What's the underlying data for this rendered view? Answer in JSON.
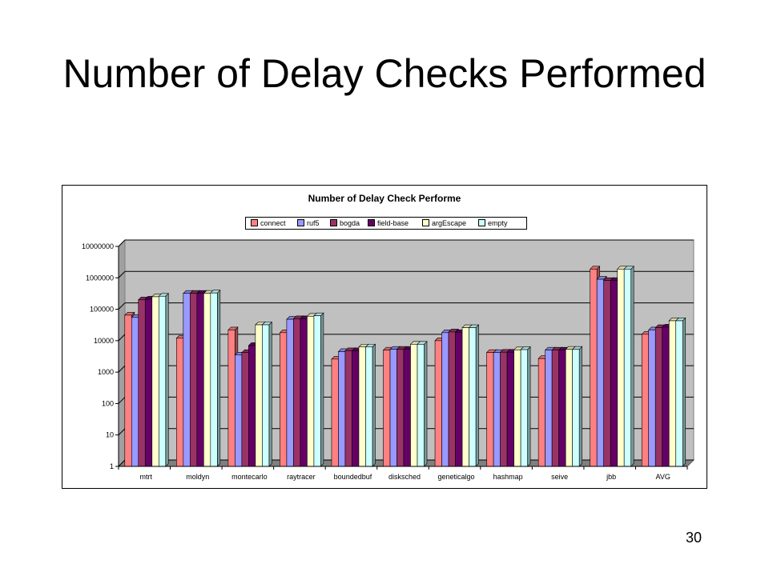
{
  "slide": {
    "title": "Number of Delay Checks Performed",
    "page_number": "30"
  },
  "chart_data": {
    "type": "bar",
    "title": "Number of Delay Check Performe",
    "y_scale": "log",
    "ylim": [
      1,
      10000000
    ],
    "y_ticks": [
      "1",
      "10",
      "100",
      "1000",
      "10000",
      "100000",
      "1000000",
      "10000000"
    ],
    "grid": true,
    "legend_position": "top",
    "plot_background": "#c0c0c0",
    "categories": [
      "mtrt",
      "moldyn",
      "montecarlo",
      "raytracer",
      "boundedbuf",
      "disksched",
      "geneticalgo",
      "hashmap",
      "seive",
      "jbb",
      "AVG"
    ],
    "series": [
      {
        "name": "connect",
        "color": "#ff8080",
        "values": [
          65000,
          12000,
          22000,
          18000,
          2600,
          5000,
          10000,
          4200,
          2700,
          1900000,
          16000
        ]
      },
      {
        "name": "ruf5",
        "color": "#9999ff",
        "values": [
          55000,
          320000,
          3500,
          48000,
          4500,
          5300,
          18000,
          4200,
          5000,
          900000,
          22000
        ]
      },
      {
        "name": "bogda",
        "color": "#993366",
        "values": [
          200000,
          320000,
          4200,
          50000,
          4800,
          5300,
          19000,
          4300,
          5000,
          820000,
          26000
        ]
      },
      {
        "name": "field-base",
        "color": "#660066",
        "values": [
          210000,
          320000,
          7000,
          50000,
          4800,
          5300,
          18000,
          4300,
          5000,
          820000,
          27000
        ]
      },
      {
        "name": "argEscape",
        "color": "#ffffcc",
        "values": [
          250000,
          320000,
          32000,
          60000,
          6300,
          7700,
          26000,
          5100,
          5300,
          1900000,
          43000
        ]
      },
      {
        "name": "empty",
        "color": "#ccffff",
        "values": [
          260000,
          330000,
          32000,
          62000,
          6300,
          7700,
          26000,
          5200,
          5300,
          1900000,
          43000
        ]
      }
    ]
  }
}
